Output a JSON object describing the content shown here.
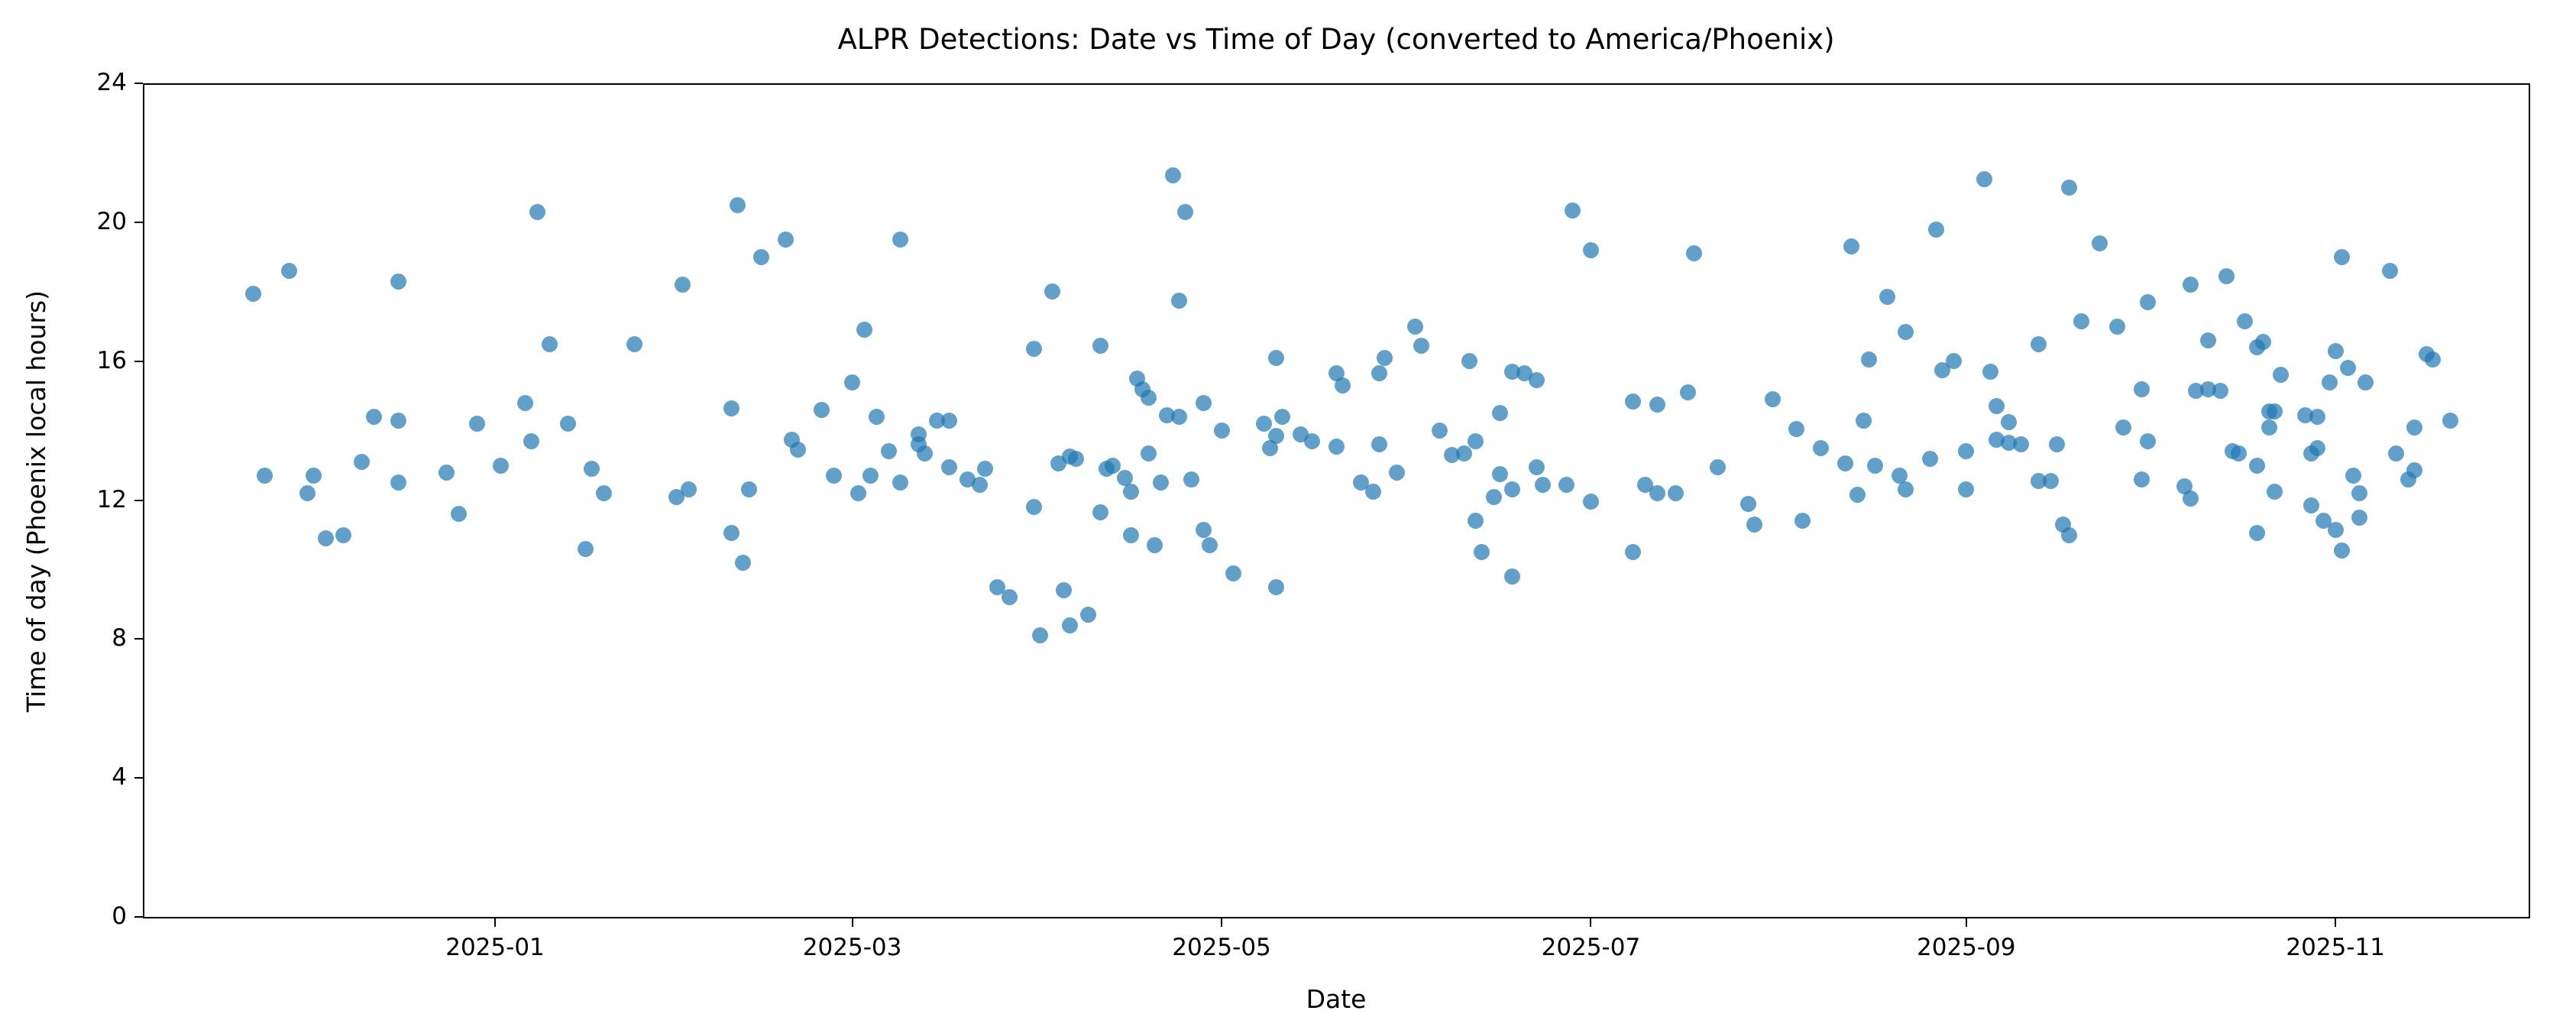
{
  "title": "ALPR Detections: Date vs Time of Day (converted to America/Phoenix)",
  "axes": {
    "xlabel": "Date",
    "ylabel": "Time of day (Phoenix local hours)",
    "xticks": [
      {
        "label": "2025-01",
        "date": "2025-01-01"
      },
      {
        "label": "2025-03",
        "date": "2025-03-01"
      },
      {
        "label": "2025-05",
        "date": "2025-05-01"
      },
      {
        "label": "2025-07",
        "date": "2025-07-01"
      },
      {
        "label": "2025-09",
        "date": "2025-09-01"
      },
      {
        "label": "2025-11",
        "date": "2025-11-01"
      }
    ],
    "yticks": [
      0,
      4,
      8,
      12,
      16,
      20,
      24
    ]
  },
  "style": {
    "dot_color": "#1f77b4",
    "dot_alpha": 0.7,
    "spine_color": "#000000",
    "background": "#ffffff"
  },
  "chart_data": {
    "type": "scatter",
    "title": "ALPR Detections: Date vs Time of Day (converted to America/Phoenix)",
    "xlabel": "Date",
    "ylabel": "Time of day (Phoenix local hours)",
    "ylim": [
      0,
      24
    ],
    "x_range": [
      "2024-11-04",
      "2025-12-02"
    ],
    "grid": false,
    "legend": false,
    "points": [
      [
        "2024-11-22",
        17.95
      ],
      [
        "2024-11-24",
        12.7
      ],
      [
        "2024-11-28",
        18.6
      ],
      [
        "2024-12-01",
        12.2
      ],
      [
        "2024-12-02",
        12.7
      ],
      [
        "2024-12-04",
        10.9
      ],
      [
        "2024-12-07",
        11.0
      ],
      [
        "2024-12-10",
        13.1
      ],
      [
        "2024-12-12",
        14.4
      ],
      [
        "2024-12-16",
        18.3
      ],
      [
        "2024-12-16",
        14.3
      ],
      [
        "2024-12-16",
        12.5
      ],
      [
        "2024-12-24",
        12.8
      ],
      [
        "2024-12-26",
        11.6
      ],
      [
        "2024-12-29",
        14.2
      ],
      [
        "2025-01-02",
        13.0
      ],
      [
        "2025-01-06",
        14.8
      ],
      [
        "2025-01-07",
        13.7
      ],
      [
        "2025-01-08",
        20.3
      ],
      [
        "2025-01-10",
        16.5
      ],
      [
        "2025-01-13",
        14.2
      ],
      [
        "2025-01-16",
        10.6
      ],
      [
        "2025-01-17",
        12.9
      ],
      [
        "2025-01-19",
        12.2
      ],
      [
        "2025-01-24",
        16.5
      ],
      [
        "2025-01-31",
        12.1
      ],
      [
        "2025-02-01",
        18.2
      ],
      [
        "2025-02-02",
        12.3
      ],
      [
        "2025-02-09",
        14.65
      ],
      [
        "2025-02-09",
        11.05
      ],
      [
        "2025-02-10",
        20.5
      ],
      [
        "2025-02-11",
        10.2
      ],
      [
        "2025-02-12",
        12.3
      ],
      [
        "2025-02-14",
        19.0
      ],
      [
        "2025-02-18",
        19.5
      ],
      [
        "2025-02-19",
        13.75
      ],
      [
        "2025-02-20",
        13.45
      ],
      [
        "2025-02-24",
        14.6
      ],
      [
        "2025-02-26",
        12.7
      ],
      [
        "2025-03-01",
        15.4
      ],
      [
        "2025-03-02",
        12.2
      ],
      [
        "2025-03-03",
        16.9
      ],
      [
        "2025-03-04",
        12.7
      ],
      [
        "2025-03-05",
        14.4
      ],
      [
        "2025-03-07",
        13.4
      ],
      [
        "2025-03-09",
        19.5
      ],
      [
        "2025-03-09",
        12.5
      ],
      [
        "2025-03-12",
        13.9
      ],
      [
        "2025-03-12",
        13.6
      ],
      [
        "2025-03-13",
        13.35
      ],
      [
        "2025-03-15",
        14.3
      ],
      [
        "2025-03-17",
        14.3
      ],
      [
        "2025-03-17",
        12.95
      ],
      [
        "2025-03-20",
        12.6
      ],
      [
        "2025-03-22",
        12.45
      ],
      [
        "2025-03-23",
        12.9
      ],
      [
        "2025-03-25",
        9.5
      ],
      [
        "2025-03-27",
        9.2
      ],
      [
        "2025-03-31",
        16.35
      ],
      [
        "2025-03-31",
        11.8
      ],
      [
        "2025-04-01",
        8.1
      ],
      [
        "2025-04-03",
        18.0
      ],
      [
        "2025-04-04",
        13.05
      ],
      [
        "2025-04-05",
        9.4
      ],
      [
        "2025-04-06",
        13.25
      ],
      [
        "2025-04-06",
        8.4
      ],
      [
        "2025-04-07",
        13.2
      ],
      [
        "2025-04-09",
        8.7
      ],
      [
        "2025-04-11",
        16.45
      ],
      [
        "2025-04-11",
        11.65
      ],
      [
        "2025-04-12",
        12.9
      ],
      [
        "2025-04-13",
        13.0
      ],
      [
        "2025-04-15",
        12.65
      ],
      [
        "2025-04-16",
        12.25
      ],
      [
        "2025-04-16",
        11.0
      ],
      [
        "2025-04-17",
        15.5
      ],
      [
        "2025-04-18",
        15.2
      ],
      [
        "2025-04-19",
        14.95
      ],
      [
        "2025-04-19",
        13.35
      ],
      [
        "2025-04-20",
        10.7
      ],
      [
        "2025-04-21",
        12.5
      ],
      [
        "2025-04-22",
        14.45
      ],
      [
        "2025-04-23",
        21.35
      ],
      [
        "2025-04-24",
        17.75
      ],
      [
        "2025-04-24",
        14.4
      ],
      [
        "2025-04-25",
        20.3
      ],
      [
        "2025-04-26",
        12.6
      ],
      [
        "2025-04-28",
        14.8
      ],
      [
        "2025-04-28",
        11.15
      ],
      [
        "2025-04-29",
        10.7
      ],
      [
        "2025-05-01",
        14.0
      ],
      [
        "2025-05-03",
        9.9
      ],
      [
        "2025-05-08",
        14.2
      ],
      [
        "2025-05-09",
        13.5
      ],
      [
        "2025-05-10",
        16.1
      ],
      [
        "2025-05-10",
        13.85
      ],
      [
        "2025-05-10",
        9.5
      ],
      [
        "2025-05-11",
        14.4
      ],
      [
        "2025-05-14",
        13.9
      ],
      [
        "2025-05-16",
        13.7
      ],
      [
        "2025-05-20",
        15.65
      ],
      [
        "2025-05-20",
        13.55
      ],
      [
        "2025-05-21",
        15.3
      ],
      [
        "2025-05-24",
        12.5
      ],
      [
        "2025-05-26",
        12.25
      ],
      [
        "2025-05-27",
        15.65
      ],
      [
        "2025-05-27",
        13.6
      ],
      [
        "2025-05-28",
        16.1
      ],
      [
        "2025-05-30",
        12.8
      ],
      [
        "2025-06-02",
        17.0
      ],
      [
        "2025-06-03",
        16.45
      ],
      [
        "2025-06-06",
        14.0
      ],
      [
        "2025-06-08",
        13.3
      ],
      [
        "2025-06-10",
        13.35
      ],
      [
        "2025-06-11",
        16.0
      ],
      [
        "2025-06-12",
        13.7
      ],
      [
        "2025-06-12",
        11.4
      ],
      [
        "2025-06-13",
        10.5
      ],
      [
        "2025-06-15",
        12.1
      ],
      [
        "2025-06-16",
        14.5
      ],
      [
        "2025-06-16",
        12.75
      ],
      [
        "2025-06-18",
        15.7
      ],
      [
        "2025-06-18",
        12.3
      ],
      [
        "2025-06-18",
        9.8
      ],
      [
        "2025-06-20",
        15.65
      ],
      [
        "2025-06-22",
        15.45
      ],
      [
        "2025-06-22",
        12.95
      ],
      [
        "2025-06-23",
        12.45
      ],
      [
        "2025-06-27",
        12.45
      ],
      [
        "2025-06-28",
        20.35
      ],
      [
        "2025-07-01",
        19.2
      ],
      [
        "2025-07-01",
        11.95
      ],
      [
        "2025-07-08",
        14.85
      ],
      [
        "2025-07-08",
        10.5
      ],
      [
        "2025-07-10",
        12.45
      ],
      [
        "2025-07-12",
        14.75
      ],
      [
        "2025-07-12",
        12.2
      ],
      [
        "2025-07-15",
        12.2
      ],
      [
        "2025-07-17",
        15.1
      ],
      [
        "2025-07-18",
        19.1
      ],
      [
        "2025-07-22",
        12.95
      ],
      [
        "2025-07-27",
        11.9
      ],
      [
        "2025-07-28",
        11.3
      ],
      [
        "2025-07-31",
        14.9
      ],
      [
        "2025-08-04",
        14.05
      ],
      [
        "2025-08-05",
        11.4
      ],
      [
        "2025-08-08",
        13.5
      ],
      [
        "2025-08-12",
        13.05
      ],
      [
        "2025-08-13",
        19.3
      ],
      [
        "2025-08-14",
        12.15
      ],
      [
        "2025-08-15",
        14.3
      ],
      [
        "2025-08-16",
        16.05
      ],
      [
        "2025-08-17",
        13.0
      ],
      [
        "2025-08-19",
        17.85
      ],
      [
        "2025-08-21",
        12.7
      ],
      [
        "2025-08-22",
        16.85
      ],
      [
        "2025-08-22",
        12.3
      ],
      [
        "2025-08-26",
        13.2
      ],
      [
        "2025-08-27",
        19.8
      ],
      [
        "2025-08-28",
        15.75
      ],
      [
        "2025-08-30",
        16.0
      ],
      [
        "2025-09-01",
        13.4
      ],
      [
        "2025-09-01",
        12.3
      ],
      [
        "2025-09-04",
        21.25
      ],
      [
        "2025-09-05",
        15.7
      ],
      [
        "2025-09-06",
        14.7
      ],
      [
        "2025-09-06",
        13.75
      ],
      [
        "2025-09-08",
        14.25
      ],
      [
        "2025-09-08",
        13.65
      ],
      [
        "2025-09-10",
        13.6
      ],
      [
        "2025-09-13",
        16.5
      ],
      [
        "2025-09-13",
        12.55
      ],
      [
        "2025-09-15",
        12.55
      ],
      [
        "2025-09-16",
        13.6
      ],
      [
        "2025-09-17",
        11.3
      ],
      [
        "2025-09-18",
        21.0
      ],
      [
        "2025-09-18",
        11.0
      ],
      [
        "2025-09-20",
        17.15
      ],
      [
        "2025-09-23",
        19.4
      ],
      [
        "2025-09-26",
        17.0
      ],
      [
        "2025-09-27",
        14.1
      ],
      [
        "2025-09-30",
        15.2
      ],
      [
        "2025-09-30",
        12.6
      ],
      [
        "2025-10-01",
        17.7
      ],
      [
        "2025-10-01",
        13.7
      ],
      [
        "2025-10-07",
        12.4
      ],
      [
        "2025-10-08",
        18.2
      ],
      [
        "2025-10-08",
        12.05
      ],
      [
        "2025-10-09",
        15.15
      ],
      [
        "2025-10-11",
        16.6
      ],
      [
        "2025-10-11",
        15.2
      ],
      [
        "2025-10-13",
        15.15
      ],
      [
        "2025-10-14",
        18.45
      ],
      [
        "2025-10-15",
        13.4
      ],
      [
        "2025-10-16",
        13.35
      ],
      [
        "2025-10-17",
        17.15
      ],
      [
        "2025-10-19",
        16.4
      ],
      [
        "2025-10-19",
        13.0
      ],
      [
        "2025-10-19",
        11.05
      ],
      [
        "2025-10-20",
        16.55
      ],
      [
        "2025-10-21",
        14.55
      ],
      [
        "2025-10-21",
        14.1
      ],
      [
        "2025-10-22",
        14.55
      ],
      [
        "2025-10-22",
        12.25
      ],
      [
        "2025-10-23",
        15.6
      ],
      [
        "2025-10-27",
        14.45
      ],
      [
        "2025-10-28",
        13.35
      ],
      [
        "2025-10-28",
        11.85
      ],
      [
        "2025-10-29",
        14.4
      ],
      [
        "2025-10-29",
        13.5
      ],
      [
        "2025-10-30",
        11.4
      ],
      [
        "2025-10-31",
        15.4
      ],
      [
        "2025-11-01",
        16.3
      ],
      [
        "2025-11-01",
        11.15
      ],
      [
        "2025-11-02",
        19.0
      ],
      [
        "2025-11-02",
        10.55
      ],
      [
        "2025-11-03",
        15.8
      ],
      [
        "2025-11-04",
        12.7
      ],
      [
        "2025-11-05",
        12.2
      ],
      [
        "2025-11-05",
        11.5
      ],
      [
        "2025-11-06",
        15.4
      ],
      [
        "2025-11-10",
        18.6
      ],
      [
        "2025-11-11",
        13.35
      ],
      [
        "2025-11-13",
        12.6
      ],
      [
        "2025-11-14",
        14.1
      ],
      [
        "2025-11-14",
        12.85
      ],
      [
        "2025-11-16",
        16.2
      ],
      [
        "2025-11-17",
        16.05
      ],
      [
        "2025-11-20",
        14.3
      ]
    ]
  }
}
